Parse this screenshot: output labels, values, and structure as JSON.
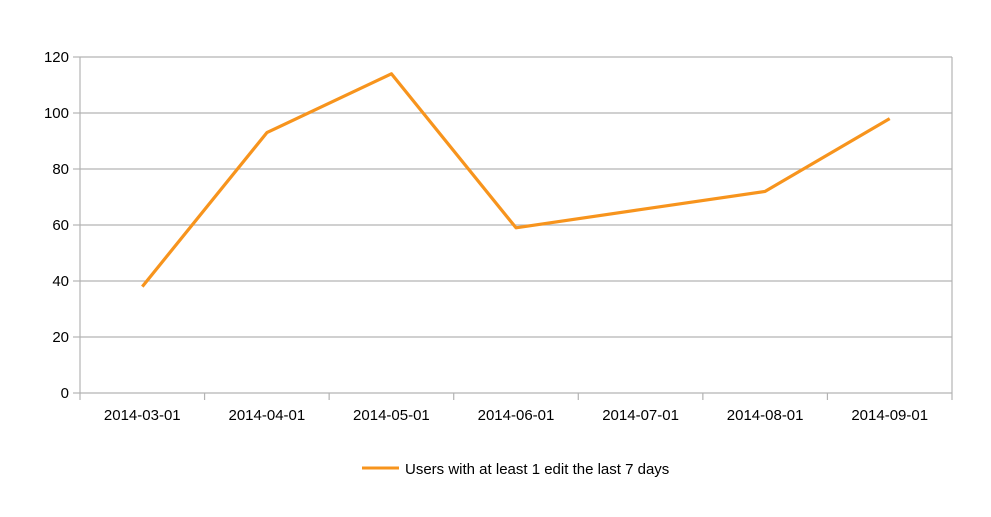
{
  "chart_data": {
    "type": "line",
    "title": "",
    "xlabel": "",
    "ylabel": "",
    "categories": [
      "2014-03-01",
      "2014-04-01",
      "2014-05-01",
      "2014-06-01",
      "2014-07-01",
      "2014-08-01",
      "2014-09-01"
    ],
    "series": [
      {
        "name": "Users with at least 1 edit the last 7 days",
        "values": [
          38,
          93,
          114,
          59,
          65.5,
          72,
          98
        ],
        "color": "#f7941d"
      }
    ],
    "ylim": [
      0,
      120
    ],
    "yticks": [
      0,
      20,
      40,
      60,
      80,
      100,
      120
    ],
    "grid": true,
    "legend_position": "bottom"
  },
  "legend": {
    "label": "Users with at least 1 edit the last 7 days"
  },
  "colors": {
    "series": "#f7941d",
    "grid": "#b3b3b3",
    "axis": "#b3b3b3",
    "text": "#000000"
  }
}
